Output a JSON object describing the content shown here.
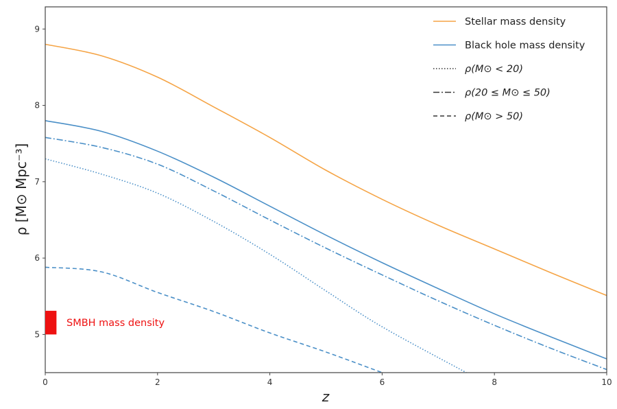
{
  "chart_data": {
    "type": "line",
    "xlabel": "z",
    "ylabel": "ρ [M⊙ Mpc⁻³]",
    "xlim": [
      0,
      10
    ],
    "ylim": [
      4.5,
      9.29
    ],
    "xticks": [
      "0",
      "2",
      "4",
      "6",
      "8",
      "10"
    ],
    "yticks": [
      "5",
      "6",
      "7",
      "8",
      "9"
    ],
    "grid": false,
    "legend_position": "top-right",
    "x": [
      0,
      1,
      2,
      3,
      4,
      5,
      6,
      7,
      8,
      9,
      10
    ],
    "series": [
      {
        "name": "Stellar mass density",
        "color": "#f5a445",
        "style": "solid",
        "values": [
          8.8,
          8.65,
          8.37,
          7.98,
          7.58,
          7.15,
          6.77,
          6.43,
          6.12,
          5.81,
          5.51
        ]
      },
      {
        "name": "Black hole mass density",
        "color": "#4a8fc7",
        "style": "solid",
        "values": [
          7.8,
          7.66,
          7.4,
          7.06,
          6.68,
          6.3,
          5.94,
          5.6,
          5.27,
          4.97,
          4.68
        ]
      },
      {
        "name": "ρ(M⊙ < 20)",
        "color": "#4a8fc7",
        "style": "dotted",
        "values": [
          7.3,
          7.1,
          6.85,
          6.48,
          6.05,
          5.57,
          5.1,
          4.7,
          null,
          null,
          null
        ]
      },
      {
        "name": "ρ(20 ≤ M⊙ ≤ 50)",
        "color": "#4a8fc7",
        "style": "dashdot",
        "values": [
          7.58,
          7.45,
          7.23,
          6.88,
          6.5,
          6.13,
          5.78,
          5.44,
          5.12,
          4.82,
          4.54
        ]
      },
      {
        "name": "ρ(M⊙ > 50)",
        "color": "#4a8fc7",
        "style": "dashed",
        "values": [
          5.88,
          5.82,
          5.55,
          5.3,
          5.02,
          4.77,
          4.5,
          null,
          null,
          null,
          null
        ]
      }
    ],
    "annotation": {
      "text": "SMBH mass density",
      "color": "#ee1111",
      "z_range": [
        0,
        0.2
      ],
      "rho_range": [
        5.0,
        5.31
      ]
    }
  }
}
